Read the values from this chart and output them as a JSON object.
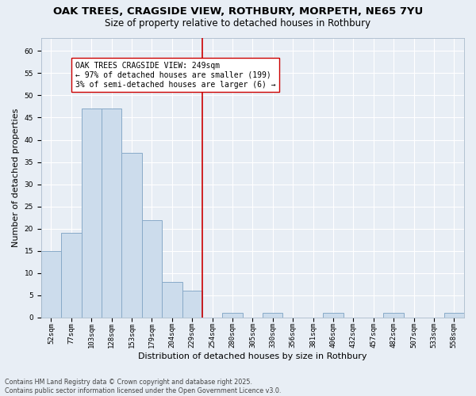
{
  "title_line1": "OAK TREES, CRAGSIDE VIEW, ROTHBURY, MORPETH, NE65 7YU",
  "title_line2": "Size of property relative to detached houses in Rothbury",
  "xlabel": "Distribution of detached houses by size in Rothbury",
  "ylabel": "Number of detached properties",
  "categories": [
    "52sqm",
    "77sqm",
    "103sqm",
    "128sqm",
    "153sqm",
    "179sqm",
    "204sqm",
    "229sqm",
    "254sqm",
    "280sqm",
    "305sqm",
    "330sqm",
    "356sqm",
    "381sqm",
    "406sqm",
    "432sqm",
    "457sqm",
    "482sqm",
    "507sqm",
    "533sqm",
    "558sqm"
  ],
  "values": [
    15,
    19,
    47,
    47,
    37,
    22,
    8,
    6,
    0,
    1,
    0,
    1,
    0,
    0,
    1,
    0,
    0,
    1,
    0,
    0,
    1
  ],
  "bar_color": "#ccdcec",
  "bar_edge_color": "#88aac8",
  "vline_x_index": 8,
  "vline_color": "#cc0000",
  "annotation_text": "OAK TREES CRAGSIDE VIEW: 249sqm\n← 97% of detached houses are smaller (199)\n3% of semi-detached houses are larger (6) →",
  "annotation_box_color": "#ffffff",
  "annotation_box_edge": "#cc0000",
  "ylim": [
    0,
    63
  ],
  "yticks": [
    0,
    5,
    10,
    15,
    20,
    25,
    30,
    35,
    40,
    45,
    50,
    55,
    60
  ],
  "background_color": "#e8eef5",
  "footnote": "Contains HM Land Registry data © Crown copyright and database right 2025.\nContains public sector information licensed under the Open Government Licence v3.0.",
  "title_fontsize": 9.5,
  "subtitle_fontsize": 8.5,
  "tick_fontsize": 6.5,
  "label_fontsize": 8,
  "annotation_fontsize": 7,
  "footnote_fontsize": 5.8,
  "ylabel_fontsize": 8
}
